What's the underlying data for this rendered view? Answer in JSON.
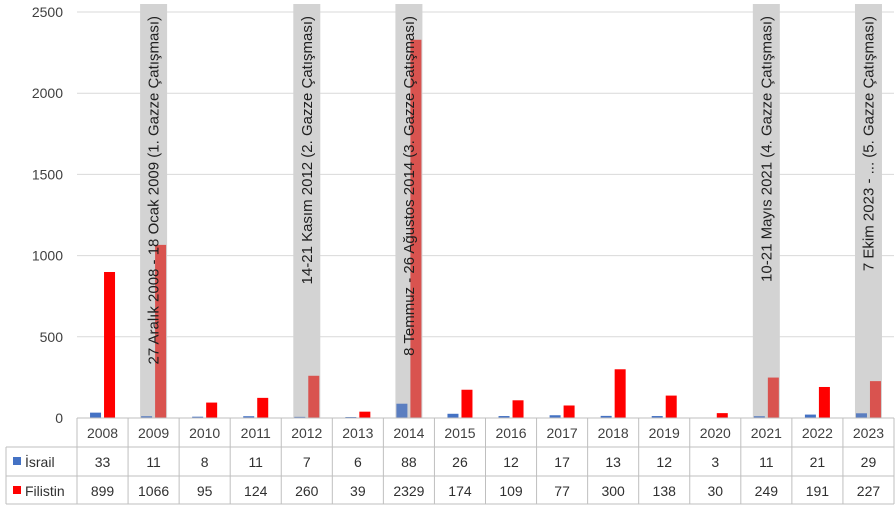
{
  "chart_data": {
    "type": "bar",
    "title": "",
    "xlabel": "",
    "ylabel": "",
    "ylim": [
      0,
      2500
    ],
    "yticks": [
      0,
      500,
      1000,
      1500,
      2000,
      2500
    ],
    "grid": true,
    "legend": "data-table-left",
    "categories": [
      "2008",
      "2009",
      "2010",
      "2011",
      "2012",
      "2013",
      "2014",
      "2015",
      "2016",
      "2017",
      "2018",
      "2019",
      "2020",
      "2021",
      "2022",
      "2023"
    ],
    "series": [
      {
        "name": "İsrail",
        "color": "#4472C4",
        "shade_color": "#5B7EC0",
        "values": [
          33,
          11,
          8,
          11,
          7,
          6,
          88,
          26,
          12,
          17,
          13,
          12,
          3,
          11,
          21,
          29
        ]
      },
      {
        "name": "Filistin",
        "color": "#FF0000",
        "shade_color": "#D9534F",
        "values": [
          899,
          1066,
          95,
          124,
          260,
          39,
          2329,
          174,
          109,
          77,
          300,
          138,
          30,
          249,
          191,
          227
        ]
      }
    ],
    "table": {
      "israel": [
        "33",
        "11",
        "8",
        "11",
        "7",
        "6",
        "88",
        "26",
        "12",
        "17",
        "13",
        "12",
        "3",
        "11",
        "21",
        "29"
      ],
      "palestine": [
        "899",
        "1066",
        "95",
        "124",
        "260",
        "39",
        "2329",
        "174",
        "109",
        "77",
        "300",
        "138",
        "30",
        "249",
        "191",
        "227"
      ]
    },
    "conflicts": [
      {
        "year": "2009",
        "label": "27 Aralık 2008 - 18 Ocak 2009 (1. Gazze Çatışması)"
      },
      {
        "year": "2012",
        "label": "14-21 Kasım 2012 (2. Gazze Çatışması)"
      },
      {
        "year": "2014",
        "label": "8 Temmuz - 26 Ağustos 2014 (3. Gazze Çatışması)"
      },
      {
        "year": "2021",
        "label": "10-21 Mayıs 2021 (4. Gazze Çatışması)"
      },
      {
        "year": "2023",
        "label": "7 Ekim 2023 - ... (5. Gazze Çatışması)"
      }
    ],
    "shade_color": "#D3D3D3"
  }
}
